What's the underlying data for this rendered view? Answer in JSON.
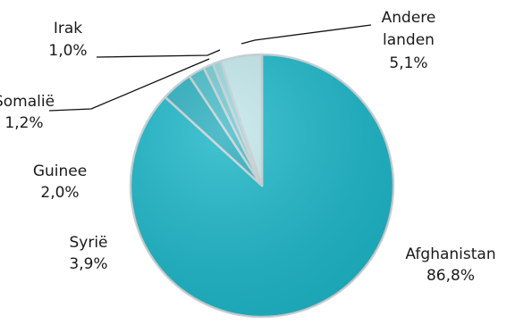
{
  "chart_data": {
    "type": "pie",
    "title": "",
    "legend": "none",
    "slices": [
      {
        "label": "Afghanistan",
        "value": 86.8,
        "value_text": "86,8%",
        "color": "#1CB7C9"
      },
      {
        "label": "Syrië",
        "value": 3.9,
        "value_text": "3,9%",
        "color": "#2BAFBF"
      },
      {
        "label": "Guinee",
        "value": 2.0,
        "value_text": "2,0%",
        "color": "#45BCC9"
      },
      {
        "label": "Somalië",
        "value": 1.2,
        "value_text": "1,2%",
        "color": "#6FCAD3"
      },
      {
        "label": "Irak",
        "value": 1.0,
        "value_text": "1,0%",
        "color": "#94D8DE"
      },
      {
        "label": "Andere landen",
        "value": 5.1,
        "value_text": "5,1%",
        "color": "#C3E8EC"
      }
    ]
  }
}
